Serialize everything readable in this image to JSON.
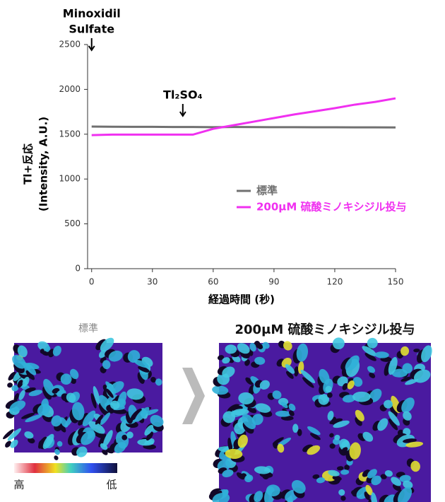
{
  "chart_data": {
    "type": "line",
    "ylabel": [
      "Tl+反応",
      "(Intensity, A.U.)"
    ],
    "xlabel": "経過時間 (秒)",
    "x": [
      0,
      10,
      20,
      30,
      40,
      50,
      60,
      70,
      80,
      90,
      100,
      110,
      120,
      130,
      140,
      150
    ],
    "series": [
      {
        "name": "標準",
        "color": "#707070",
        "values": [
          1585,
          1583,
          1582,
          1582,
          1580,
          1580,
          1578,
          1580,
          1579,
          1578,
          1578,
          1577,
          1577,
          1576,
          1576,
          1575
        ]
      },
      {
        "name": "200μM 硫酸ミノキシジル投与",
        "color": "#f030f0",
        "values": [
          1490,
          1495,
          1495,
          1495,
          1495,
          1495,
          1560,
          1600,
          1640,
          1680,
          1720,
          1755,
          1790,
          1830,
          1860,
          1900
        ]
      }
    ],
    "xlim": [
      -2,
      150
    ],
    "xticks": [
      0,
      30,
      60,
      90,
      120,
      150
    ],
    "ylim": [
      0,
      2500
    ],
    "yticks": [
      0,
      500,
      1000,
      1500,
      2000,
      2500
    ],
    "legend": "right",
    "annotations": [
      {
        "lines": [
          "Minoxidil",
          "Sulfate"
        ],
        "x": 0
      },
      {
        "lines": [
          "Tl₂SO₄"
        ],
        "x": 45
      }
    ]
  },
  "images": {
    "left_label": "標準",
    "right_label": "200μM 硫酸ミノキシジル投与",
    "scale_high": "高",
    "scale_low": "低"
  }
}
